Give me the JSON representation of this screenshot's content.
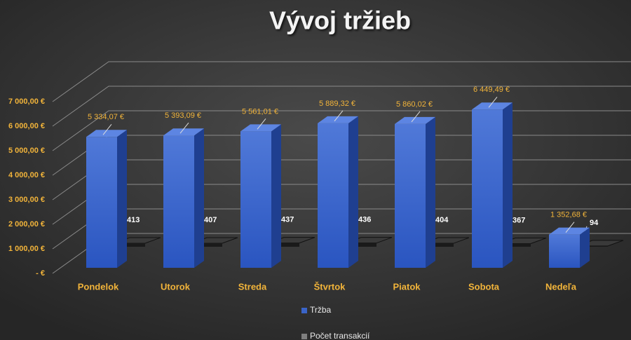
{
  "chart_data": {
    "type": "bar3d",
    "title": "Vývoj tržieb",
    "categories": [
      "Pondelok",
      "Utorok",
      "Streda",
      "Štvrtok",
      "Piatok",
      "Sobota",
      "Nedeľa"
    ],
    "series": [
      {
        "name": "Tržba",
        "color": "#3a64c8",
        "values": [
          5334.07,
          5393.09,
          5561.01,
          5889.32,
          5860.02,
          6449.49,
          1352.68
        ],
        "value_labels": [
          "5 334,07 €",
          "5 393,09 €",
          "5 561,01 €",
          "5 889,32 €",
          "5 860,02 €",
          "6 449,49 €",
          "1 352,68 €"
        ]
      },
      {
        "name": "Počet transakcií",
        "color": "#7f7f7f",
        "values": [
          413,
          407,
          437,
          436,
          404,
          367,
          94
        ]
      }
    ],
    "ylim": [
      0,
      7000
    ],
    "yticks": [
      {
        "value": 0,
        "label": "-  €"
      },
      {
        "value": 1000,
        "label": "1 000,00 €"
      },
      {
        "value": 2000,
        "label": "2 000,00 €"
      },
      {
        "value": 3000,
        "label": "3 000,00 €"
      },
      {
        "value": 4000,
        "label": "4 000,00 €"
      },
      {
        "value": 5000,
        "label": "5 000,00 €"
      },
      {
        "value": 6000,
        "label": "6 000,00 €"
      },
      {
        "value": 7000,
        "label": "7 000,00 €"
      }
    ],
    "grid": true,
    "legend": "bottom"
  }
}
